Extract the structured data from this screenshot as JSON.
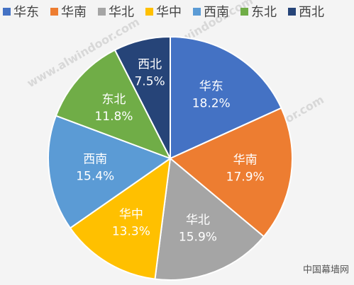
{
  "chart_data": {
    "type": "pie",
    "categories": [
      "华东",
      "华南",
      "华北",
      "华中",
      "西南",
      "东北",
      "西北"
    ],
    "values": [
      18.2,
      17.9,
      15.9,
      13.3,
      15.4,
      11.8,
      7.5
    ],
    "value_labels": [
      "18.2%",
      "17.9%",
      "15.9%",
      "13.3%",
      "15.4%",
      "11.8%",
      "7.5%"
    ],
    "colors": [
      "#4472c4",
      "#ed7d31",
      "#a5a5a5",
      "#ffc000",
      "#5b9bd5",
      "#70ad47",
      "#264478"
    ],
    "legend": "top",
    "watermark": "www.alwindoor.com",
    "source": "中国幕墙网"
  }
}
